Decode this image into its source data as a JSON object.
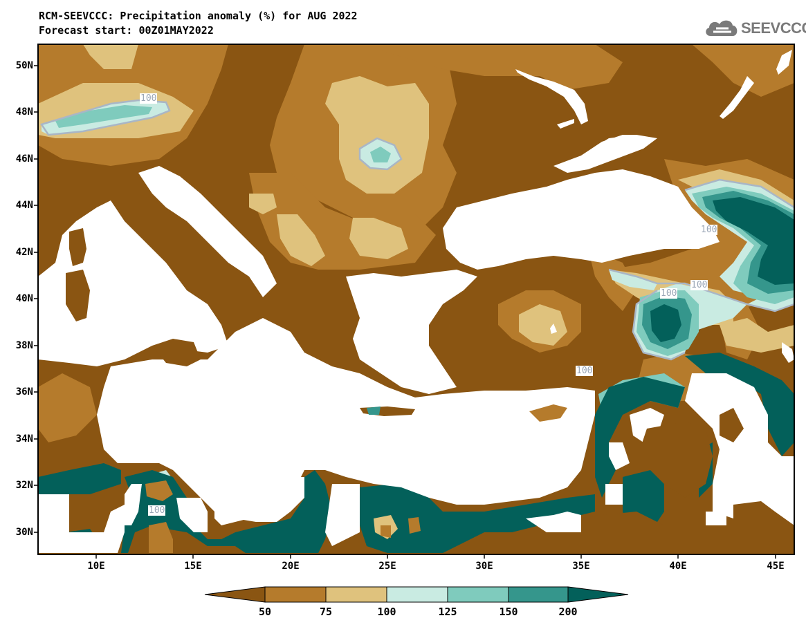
{
  "title_line1": "RCM-SEEVCCC: Precipitation anomaly (%) for AUG 2022",
  "title_line2": "Forecast start: 00Z01MAY2022",
  "logo_text": "SEEVCCC",
  "lat_labels": [
    "50N",
    "48N",
    "46N",
    "44N",
    "42N",
    "40N",
    "38N",
    "36N",
    "34N",
    "32N",
    "30N"
  ],
  "lon_labels": [
    "10E",
    "15E",
    "20E",
    "25E",
    "30E",
    "35E",
    "40E",
    "45E"
  ],
  "contour_labels": [
    "100",
    "100",
    "100",
    "100",
    "100",
    "100"
  ],
  "colorbar": {
    "labels": [
      "50",
      "75",
      "100",
      "125",
      "150",
      "200"
    ],
    "colors": [
      "#8a5512",
      "#b57b2c",
      "#dfc27d",
      "#c9ebe2",
      "#7fcbbd",
      "#35968c",
      "#03605a"
    ]
  },
  "colors": {
    "lt50": "#8a5512",
    "c50_75": "#b57b2c",
    "c75_100": "#dfc27d",
    "c100_125": "#c9ebe2",
    "c125_150": "#7fcbbd",
    "c150_200": "#35968c",
    "gt200": "#03605a"
  }
}
